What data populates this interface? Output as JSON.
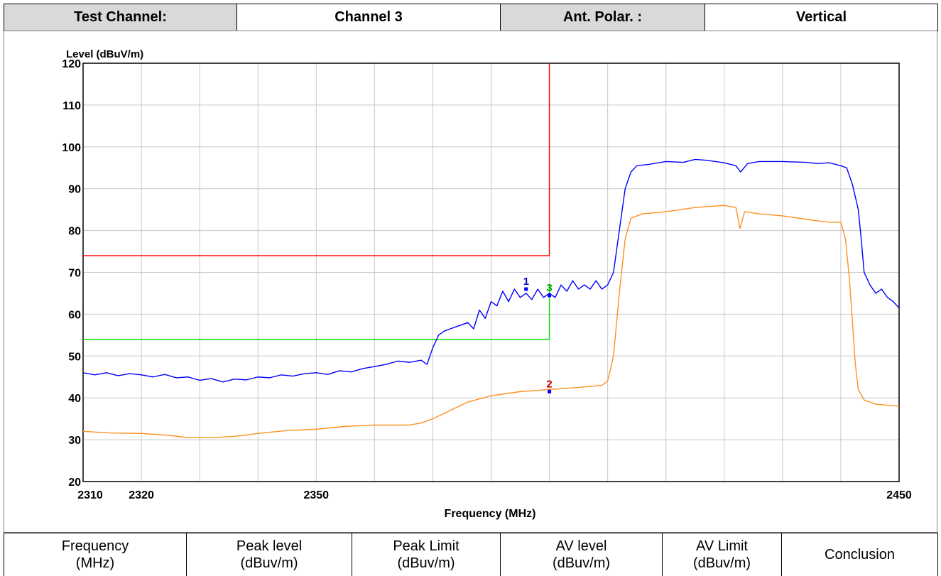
{
  "header": {
    "cells": [
      "Test Channel:",
      "Channel 3",
      "Ant. Polar. :",
      "Vertical"
    ]
  },
  "chart_data": {
    "type": "line",
    "ylabel": "Level (dBuV/m)",
    "xlabel": "Frequency (MHz)",
    "xlim": [
      2310,
      2450
    ],
    "ylim": [
      20,
      120
    ],
    "xticks": [
      2310,
      2320,
      2350,
      2450
    ],
    "xgrid": [
      2310,
      2320,
      2330,
      2340,
      2350,
      2360,
      2370,
      2380,
      2390,
      2400,
      2410,
      2420,
      2430,
      2440,
      2450
    ],
    "yticks": [
      20,
      30,
      40,
      50,
      60,
      70,
      80,
      90,
      100,
      110,
      120
    ],
    "grid": true,
    "series": [
      {
        "color": "#ff0000",
        "x": [
          2310,
          2390,
          2390
        ],
        "values": [
          74,
          74,
          120
        ]
      },
      {
        "color": "#00dd00",
        "x": [
          2310,
          2390,
          2390
        ],
        "values": [
          54,
          54,
          67
        ]
      },
      {
        "color": "#0000ff",
        "x": [
          2310,
          2312,
          2314,
          2316,
          2318,
          2320,
          2322,
          2324,
          2326,
          2328,
          2330,
          2332,
          2334,
          2336,
          2338,
          2340,
          2342,
          2344,
          2346,
          2348,
          2350,
          2352,
          2354,
          2356,
          2358,
          2360,
          2362,
          2364,
          2366,
          2368,
          2369,
          2370,
          2371,
          2372,
          2374,
          2376,
          2377,
          2378,
          2379,
          2380,
          2381,
          2382,
          2383,
          2384,
          2385,
          2386,
          2387,
          2388,
          2389,
          2390,
          2391,
          2392,
          2393,
          2394,
          2395,
          2396,
          2397,
          2398,
          2399,
          2400,
          2401,
          2402,
          2403,
          2404,
          2405,
          2407,
          2410,
          2413,
          2415,
          2417,
          2420,
          2422,
          2422.8,
          2424,
          2426,
          2430,
          2434,
          2436,
          2438,
          2440,
          2441,
          2442,
          2443,
          2443.5,
          2444,
          2445,
          2446,
          2447,
          2448,
          2449,
          2450
        ],
        "values": [
          46,
          45.5,
          46,
          45.3,
          45.8,
          45.5,
          45,
          45.6,
          44.8,
          45,
          44.2,
          44.6,
          43.8,
          44.5,
          44.3,
          45,
          44.8,
          45.5,
          45.2,
          45.8,
          46,
          45.6,
          46.5,
          46.2,
          47,
          47.5,
          48,
          48.8,
          48.5,
          49,
          48,
          52,
          55,
          56,
          57,
          58,
          56.5,
          61,
          59,
          63,
          62,
          65.5,
          63,
          66,
          64,
          65,
          63.5,
          66,
          64,
          65,
          64,
          67,
          65.5,
          68,
          66,
          67,
          66,
          68,
          66,
          67,
          70,
          80,
          90,
          94,
          95.5,
          95.8,
          96.5,
          96.3,
          97,
          96.8,
          96.2,
          95.5,
          94,
          96,
          96.5,
          96.5,
          96.3,
          96,
          96.2,
          95.5,
          95,
          91,
          85,
          78,
          70,
          67,
          65,
          66,
          64,
          63,
          61.5
        ]
      },
      {
        "color": "#ff9020",
        "x": [
          2310,
          2315,
          2320,
          2325,
          2328,
          2332,
          2336,
          2340,
          2345,
          2350,
          2355,
          2360,
          2366,
          2368,
          2370,
          2373,
          2376,
          2380,
          2385,
          2390,
          2395,
          2399,
          2400,
          2401,
          2402,
          2403,
          2404,
          2406,
          2410,
          2415,
          2420,
          2422,
          2422.7,
          2423.5,
          2426,
          2430,
          2435,
          2438,
          2440,
          2440.8,
          2441.5,
          2442,
          2442.5,
          2443,
          2444,
          2446,
          2450
        ],
        "values": [
          32,
          31.6,
          31.5,
          31,
          30.5,
          30.5,
          30.8,
          31.5,
          32.2,
          32.5,
          33.2,
          33.5,
          33.5,
          34,
          35,
          37,
          39,
          40.5,
          41.5,
          42,
          42.5,
          43,
          44,
          50,
          65,
          78,
          83,
          84,
          84.5,
          85.5,
          86,
          85.5,
          80.5,
          84.5,
          84,
          83.5,
          82.5,
          82,
          82,
          78,
          68,
          58,
          48,
          42,
          39.5,
          38.5,
          38
        ]
      }
    ],
    "markers": [
      {
        "label": "1",
        "x": 2386,
        "y": 66,
        "color": "#0000ff",
        "label_color": "#0000cc"
      },
      {
        "label": "2",
        "x": 2390,
        "y": 41.5,
        "color": "#0000ff",
        "label_color": "#cc0000"
      },
      {
        "label": "3",
        "x": 2390,
        "y": 64.5,
        "color": "#0000ff",
        "label_color": "#00aa00"
      }
    ]
  },
  "footer": {
    "cells": [
      "Frequency\n(MHz)",
      "Peak level\n(dBuv/m)",
      "Peak Limit\n(dBuv/m)",
      "AV level\n(dBuv/m)",
      "AV Limit\n(dBuv/m)",
      "Conclusion"
    ]
  }
}
